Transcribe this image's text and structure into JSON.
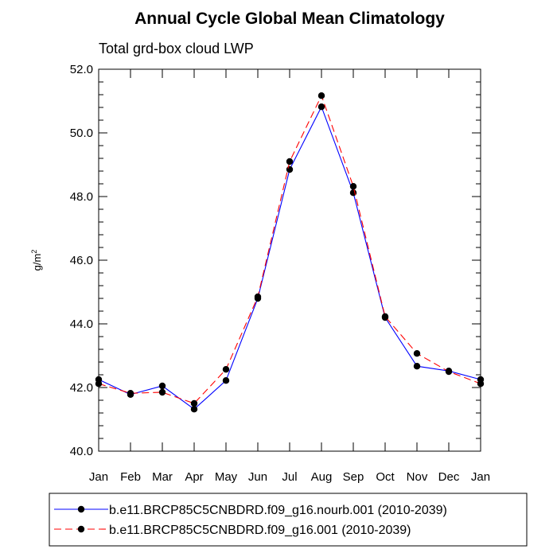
{
  "chart_data": {
    "type": "line",
    "title": "Annual Cycle Global Mean Climatology",
    "subtitle": "Total grd-box cloud LWP",
    "ylabel": "g/m",
    "ylabel_superscript": "2",
    "xlabel": "",
    "categories": [
      "Jan",
      "Feb",
      "Mar",
      "Apr",
      "May",
      "Jun",
      "Jul",
      "Aug",
      "Sep",
      "Oct",
      "Nov",
      "Dec",
      "Jan"
    ],
    "ylim": [
      40.0,
      52.0
    ],
    "yticks": [
      40.0,
      42.0,
      44.0,
      46.0,
      48.0,
      50.0,
      52.0
    ],
    "ytick_labels": [
      "40.0",
      "42.0",
      "44.0",
      "46.0",
      "48.0",
      "50.0",
      "52.0"
    ],
    "y_minor_step": 0.4,
    "grid": false,
    "legend_position": "bottom",
    "series": [
      {
        "name": "b.e11.BRCP85C5CNBDRD.f09_g16.nourb.001 (2010-2039)",
        "color": "#0000ff",
        "dash": "solid",
        "values": [
          42.25,
          41.78,
          42.05,
          41.32,
          42.22,
          44.8,
          48.85,
          50.82,
          48.12,
          44.2,
          42.67,
          42.52,
          42.25
        ]
      },
      {
        "name": "b.e11.BRCP85C5CNBDRD.f09_g16.001 (2010-2039)",
        "color": "#ff0000",
        "dash": "dashed",
        "values": [
          42.12,
          41.82,
          41.85,
          41.5,
          42.57,
          44.85,
          49.1,
          51.17,
          48.32,
          44.23,
          43.07,
          42.5,
          42.12
        ]
      }
    ]
  }
}
